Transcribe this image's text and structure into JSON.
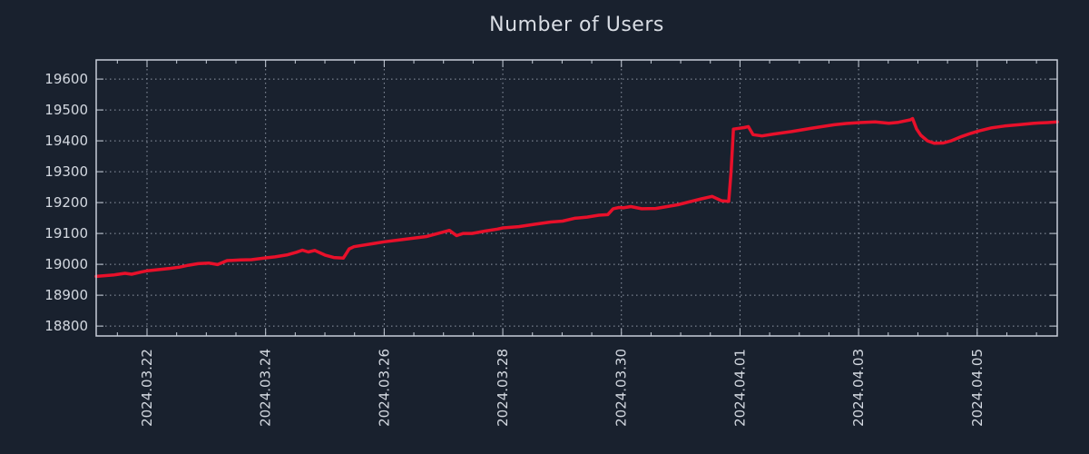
{
  "chart_data": {
    "type": "line",
    "title": "Number of Users",
    "legend_position": "none",
    "grid": "dotted-major",
    "colors": {
      "background": "#19212e",
      "line": "#e8102a",
      "frame": "#c7ced9",
      "grid": "#aeb6c4",
      "text": "#d3d8e0"
    },
    "x_axis": {
      "unit": "days-since-2024.03.21",
      "range": [
        0.143,
        16.35
      ],
      "minor_tick_step": 0.5,
      "major_ticks": [
        {
          "t": 1,
          "label": "2024.03.22"
        },
        {
          "t": 3,
          "label": "2024.03.24"
        },
        {
          "t": 5,
          "label": "2024.03.26"
        },
        {
          "t": 7,
          "label": "2024.03.28"
        },
        {
          "t": 9,
          "label": "2024.03.30"
        },
        {
          "t": 11,
          "label": "2024.04.01"
        },
        {
          "t": 13,
          "label": "2024.04.03"
        },
        {
          "t": 15,
          "label": "2024.04.05"
        }
      ]
    },
    "y_axis": {
      "range": [
        18768,
        19662
      ],
      "ticks": [
        18800,
        18900,
        19000,
        19100,
        19200,
        19300,
        19400,
        19500,
        19600
      ]
    },
    "series": [
      {
        "name": "Number of Users",
        "color": "#e8102a",
        "points": [
          [
            0.143,
            18961
          ],
          [
            0.45,
            18966
          ],
          [
            0.63,
            18971
          ],
          [
            0.74,
            18968
          ],
          [
            0.92,
            18976
          ],
          [
            1.0,
            18979
          ],
          [
            1.2,
            18983
          ],
          [
            1.4,
            18987
          ],
          [
            1.55,
            18991
          ],
          [
            1.7,
            18997
          ],
          [
            1.86,
            19002
          ],
          [
            2.04,
            19004
          ],
          [
            2.19,
            18999
          ],
          [
            2.35,
            19012
          ],
          [
            2.58,
            19014
          ],
          [
            2.76,
            19015
          ],
          [
            3.0,
            19021
          ],
          [
            3.16,
            19024
          ],
          [
            3.37,
            19031
          ],
          [
            3.52,
            19039
          ],
          [
            3.62,
            19046
          ],
          [
            3.72,
            19040
          ],
          [
            3.83,
            19045
          ],
          [
            4.0,
            19030
          ],
          [
            4.15,
            19022
          ],
          [
            4.31,
            19020
          ],
          [
            4.41,
            19050
          ],
          [
            4.49,
            19057
          ],
          [
            4.84,
            19068
          ],
          [
            5.0,
            19073
          ],
          [
            5.3,
            19080
          ],
          [
            5.71,
            19090
          ],
          [
            5.91,
            19100
          ],
          [
            6.1,
            19110
          ],
          [
            6.22,
            19093
          ],
          [
            6.33,
            19100
          ],
          [
            6.48,
            19100
          ],
          [
            6.71,
            19108
          ],
          [
            6.91,
            19114
          ],
          [
            7.0,
            19118
          ],
          [
            7.27,
            19122
          ],
          [
            7.55,
            19130
          ],
          [
            7.81,
            19137
          ],
          [
            8.01,
            19140
          ],
          [
            8.21,
            19149
          ],
          [
            8.42,
            19153
          ],
          [
            8.62,
            19159
          ],
          [
            8.77,
            19161
          ],
          [
            8.86,
            19180
          ],
          [
            8.96,
            19184
          ],
          [
            9.03,
            19183
          ],
          [
            9.16,
            19187
          ],
          [
            9.34,
            19180
          ],
          [
            9.58,
            19181
          ],
          [
            9.95,
            19193
          ],
          [
            10.35,
            19212
          ],
          [
            10.53,
            19220
          ],
          [
            10.69,
            19206
          ],
          [
            10.81,
            19204
          ],
          [
            10.85,
            19300
          ],
          [
            10.89,
            19438
          ],
          [
            11.07,
            19443
          ],
          [
            11.14,
            19446
          ],
          [
            11.22,
            19420
          ],
          [
            11.37,
            19416
          ],
          [
            11.57,
            19422
          ],
          [
            11.87,
            19430
          ],
          [
            12.18,
            19440
          ],
          [
            12.39,
            19446
          ],
          [
            12.59,
            19452
          ],
          [
            12.79,
            19456
          ],
          [
            13.02,
            19459
          ],
          [
            13.28,
            19461
          ],
          [
            13.51,
            19457
          ],
          [
            13.67,
            19460
          ],
          [
            13.87,
            19468
          ],
          [
            13.91,
            19472
          ],
          [
            13.98,
            19438
          ],
          [
            14.05,
            19418
          ],
          [
            14.16,
            19400
          ],
          [
            14.28,
            19392
          ],
          [
            14.43,
            19393
          ],
          [
            14.56,
            19400
          ],
          [
            14.74,
            19414
          ],
          [
            14.89,
            19424
          ],
          [
            15.03,
            19432
          ],
          [
            15.24,
            19442
          ],
          [
            15.46,
            19448
          ],
          [
            15.7,
            19452
          ],
          [
            15.96,
            19457
          ],
          [
            16.19,
            19459
          ],
          [
            16.35,
            19461
          ]
        ]
      }
    ]
  }
}
